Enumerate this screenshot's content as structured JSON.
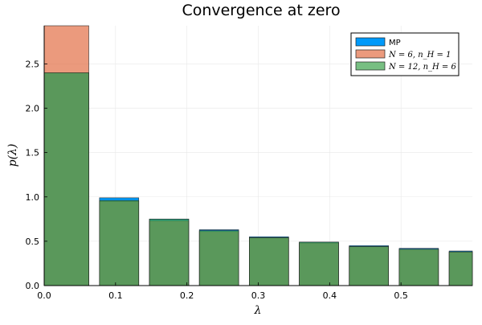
{
  "chart_data": {
    "type": "bar",
    "title": "Convergence at zero",
    "xlabel": "λ",
    "ylabel": "p(λ)",
    "xlim": [
      0.0,
      0.6
    ],
    "ylim": [
      0.0,
      2.93
    ],
    "xticks": [
      "0.0",
      "0.1",
      "0.2",
      "0.3",
      "0.4",
      "0.5"
    ],
    "xtick_values": [
      0.0,
      0.1,
      0.2,
      0.3,
      0.4,
      0.5
    ],
    "yticks": [
      "0.0",
      "0.5",
      "1.0",
      "1.5",
      "2.0",
      "2.5"
    ],
    "ytick_values": [
      0.0,
      0.5,
      1.0,
      1.5,
      2.0,
      2.5
    ],
    "grid": true,
    "legend_position": "top-right",
    "bins": [
      {
        "x0": 0.0,
        "x1": 0.0625
      },
      {
        "x0": 0.0775,
        "x1": 0.1325
      },
      {
        "x0": 0.1475,
        "x1": 0.2025
      },
      {
        "x0": 0.2175,
        "x1": 0.2725
      },
      {
        "x0": 0.2875,
        "x1": 0.3425
      },
      {
        "x0": 0.3575,
        "x1": 0.4125
      },
      {
        "x0": 0.4275,
        "x1": 0.4825
      },
      {
        "x0": 0.4975,
        "x1": 0.5525
      },
      {
        "x0": 0.5675,
        "x1": 0.6
      }
    ],
    "series": [
      {
        "name": "MP",
        "color": "#009AFA",
        "values": [
          2.4,
          0.99,
          0.75,
          0.63,
          0.55,
          0.49,
          0.45,
          0.42,
          0.39
        ]
      },
      {
        "name": "N = 6, n_H = 1",
        "color": "#E26F46",
        "values": [
          2.93,
          0.95,
          0.73,
          0.61,
          0.54,
          0.48,
          0.44,
          0.41,
          0.38
        ]
      },
      {
        "name": "N = 12, n_H = 6",
        "color": "#3DA44D",
        "values": [
          2.4,
          0.96,
          0.75,
          0.62,
          0.54,
          0.49,
          0.44,
          0.41,
          0.38
        ]
      }
    ]
  }
}
